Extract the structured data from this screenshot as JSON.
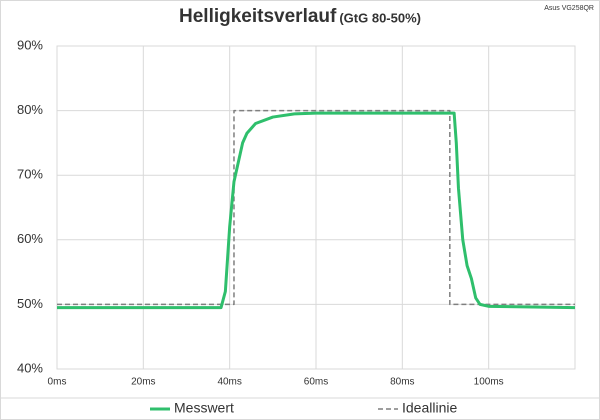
{
  "chart_data": {
    "type": "line",
    "title": "Helligkeitsverlauf",
    "subtitle": "(GtG 80-50%)",
    "annotation": "Asus VG258QR",
    "x": [
      0,
      38,
      39,
      40,
      41,
      42,
      43,
      44,
      46,
      50,
      55,
      60,
      92,
      92.5,
      93,
      94,
      95,
      96,
      97,
      98,
      100,
      120
    ],
    "series": [
      {
        "name": "Messwert",
        "color": "#2fbf6c",
        "dash": false,
        "x": [
          0,
          38,
          39,
          40,
          41,
          42,
          43,
          44,
          46,
          50,
          55,
          60,
          92,
          92.5,
          93,
          94,
          95,
          96,
          97,
          98,
          100,
          120
        ],
        "values": [
          49.5,
          49.5,
          52,
          62,
          69,
          72,
          75,
          76.5,
          78,
          79,
          79.5,
          79.6,
          79.6,
          75,
          68,
          60,
          56,
          54,
          51,
          50,
          49.7,
          49.5
        ]
      },
      {
        "name": "Ideallinie",
        "color": "#7f7f7f",
        "dash": true,
        "x": [
          0,
          41,
          41,
          91,
          91,
          120
        ],
        "values": [
          50,
          50,
          80,
          80,
          50,
          50
        ]
      }
    ],
    "xlim": [
      0,
      120
    ],
    "xticks": [
      {
        "value": 0,
        "label": "0ms"
      },
      {
        "value": 20,
        "label": "20ms"
      },
      {
        "value": 40,
        "label": "40ms"
      },
      {
        "value": 60,
        "label": "60ms"
      },
      {
        "value": 80,
        "label": "80ms"
      },
      {
        "value": 100,
        "label": "100ms"
      }
    ],
    "ylim": [
      40,
      90
    ],
    "yticks": [
      {
        "value": 40,
        "label": "40%"
      },
      {
        "value": 50,
        "label": "50%"
      },
      {
        "value": 60,
        "label": "60%"
      },
      {
        "value": 70,
        "label": "70%"
      },
      {
        "value": 80,
        "label": "80%"
      },
      {
        "value": 90,
        "label": "90%"
      }
    ],
    "grid": true,
    "legend": "bottom"
  }
}
